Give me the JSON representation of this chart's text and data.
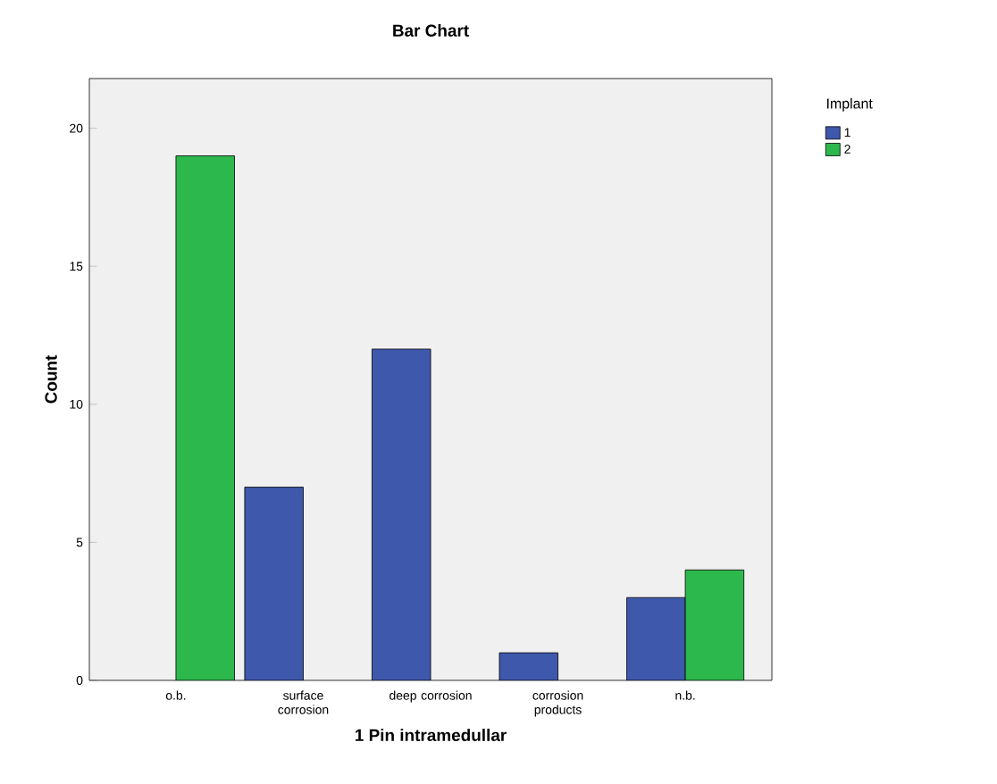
{
  "chart_data": {
    "type": "bar",
    "title": "Bar Chart",
    "xlabel": "1 Pin intramedullar",
    "ylabel": "Count",
    "legend_title": "Implant",
    "categories": [
      "o.b.",
      "surface corrosion",
      "deep corrosion",
      "corrosion products",
      "n.b."
    ],
    "series": [
      {
        "name": "1",
        "color": "#3e58ac",
        "values": [
          null,
          7,
          12,
          1,
          3
        ]
      },
      {
        "name": "2",
        "color": "#2db84d",
        "values": [
          19,
          null,
          null,
          null,
          4
        ]
      }
    ],
    "ylim": [
      0,
      21.8
    ],
    "yticks": [
      0,
      5,
      10,
      15,
      20
    ],
    "grid": false,
    "legend": "top right"
  }
}
